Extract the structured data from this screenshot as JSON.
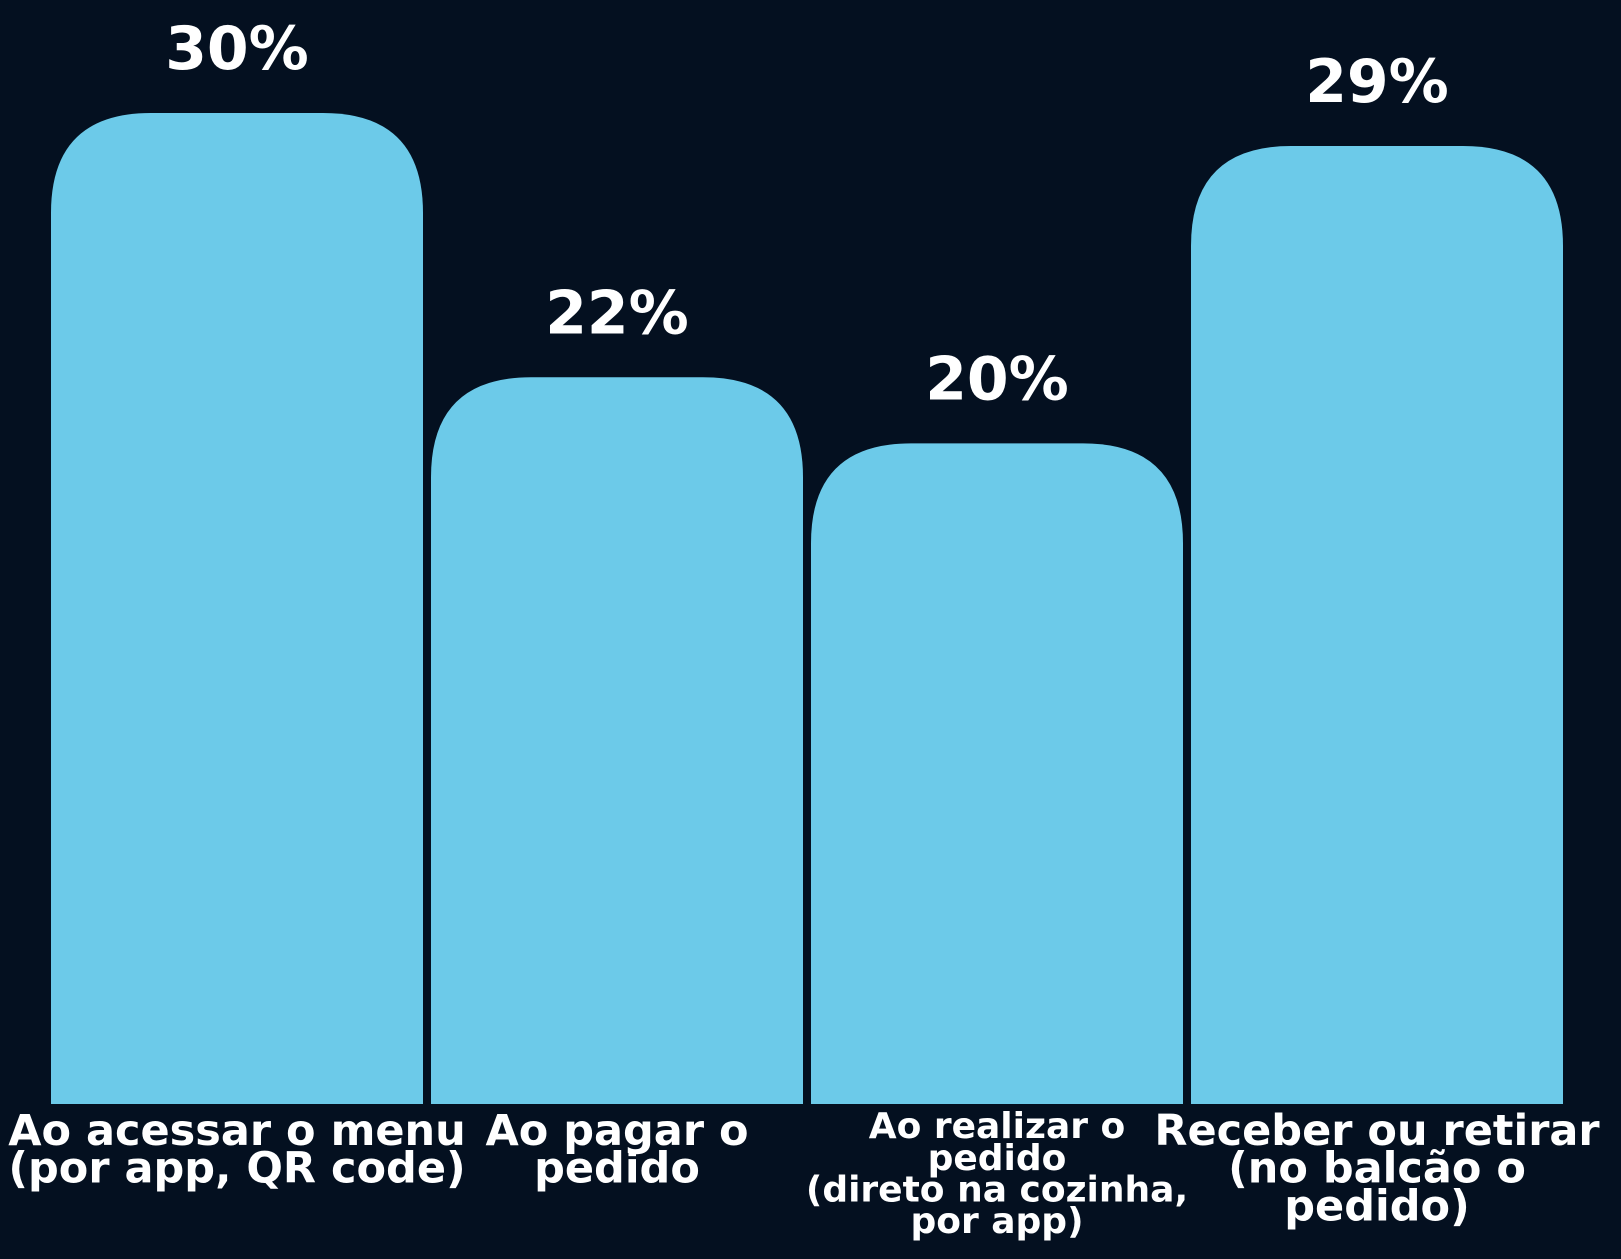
{
  "colors": {
    "background": "#041020",
    "bar": "#6ccae9",
    "text": "#ffffff"
  },
  "chart_data": {
    "type": "bar",
    "title": "",
    "xlabel": "",
    "ylabel": "",
    "ylim": [
      0,
      30
    ],
    "grid": false,
    "legend": "none",
    "categories": [
      [
        "Ao acessar o menu",
        "(por app, QR code)"
      ],
      [
        "Ao pagar o",
        "pedido"
      ],
      [
        "Ao realizar o",
        "pedido",
        "(direto na cozinha,",
        "por app)"
      ],
      [
        "Receber ou retirar",
        "(no balcão o",
        "pedido)"
      ]
    ],
    "values": [
      30,
      22,
      20,
      29
    ],
    "value_labels": [
      "30%",
      "22%",
      "20%",
      "29%"
    ]
  }
}
